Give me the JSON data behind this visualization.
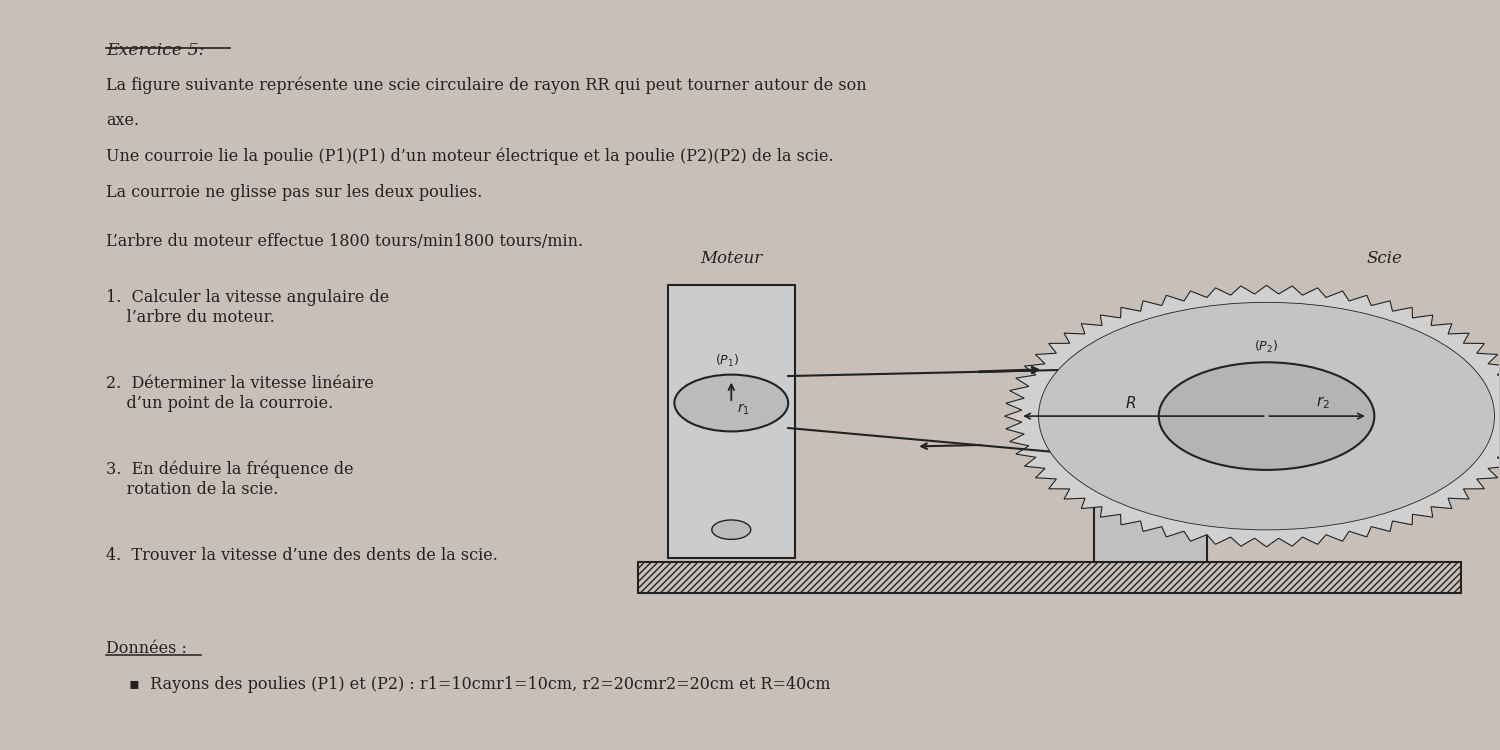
{
  "bg_color": "#c8c0b8",
  "paper_color": "#e8e4dc",
  "title": "Exercice 5:",
  "text_lines": [
    "La figure suivante représente une scie circulaire de rayon RR qui peut tourner autour de son",
    "axe.",
    "Une courroie lie la poulie (P1)(P1) d’un moteur électrique et la poulie (P2)(P2) de la scie.",
    "La courroie ne glisse pas sur les deux poulies.",
    "L’arbre du moteur effectue 1800 tours/min1800 tours/min."
  ],
  "questions": [
    "1.  Calculer la vitesse angulaire de\n    l’arbre du moteur.",
    "2.  Déterminer la vitesse linéaire\n    d’un point de la courroie.",
    "3.  En déduire la fréquence de\n    rotation de la scie.",
    "4.  Trouver la vitesse d’une des dents de la scie."
  ],
  "donnees_title": "Données :",
  "donnees_text": "Rayons des poulies (P1) et (P2) : r1=10cmr1=10cm, r2=20cmr2=20cm et R=40cm",
  "moteur_label": "Moteur",
  "scie_label": "Scie",
  "line_color": "#222222"
}
